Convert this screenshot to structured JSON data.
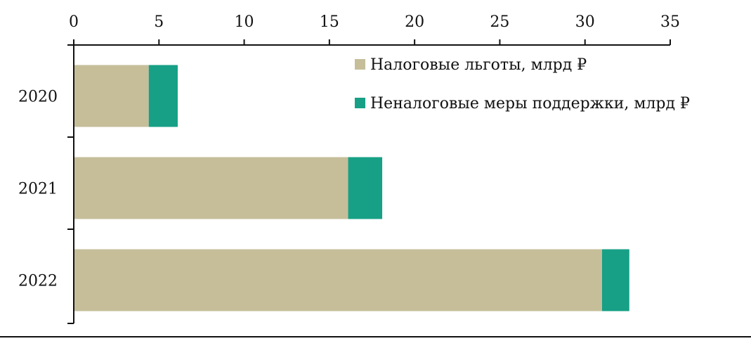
{
  "chart_data": {
    "type": "bar",
    "orientation": "horizontal",
    "stacked": true,
    "categories": [
      "2020",
      "2021",
      "2022"
    ],
    "series": [
      {
        "name": "Налоговые льготы, млрд ₽",
        "values": [
          4.4,
          16.1,
          31.0
        ],
        "color": "#c5be99"
      },
      {
        "name": "Неналоговые меры поддержки, млрд ₽",
        "values": [
          1.7,
          2.0,
          1.6
        ],
        "color": "#17a086"
      }
    ],
    "xlim": [
      0,
      35
    ],
    "xticks": [
      "0",
      "5",
      "10",
      "15",
      "20",
      "25",
      "30",
      "35"
    ],
    "x_axis_position": "top",
    "grid": false,
    "legend_position": "top-right"
  }
}
